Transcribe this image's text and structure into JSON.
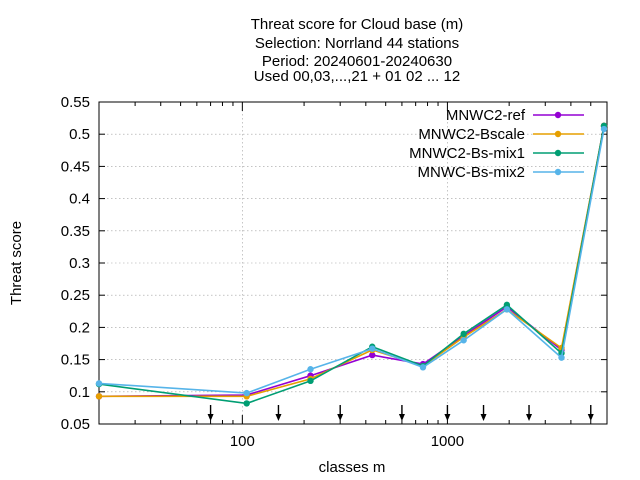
{
  "chart_data": {
    "type": "line",
    "title_lines": [
      "Threat score  for Cloud base (m)",
      "Selection: Norrland     44 stations",
      "Period: 20240601-20240630",
      "Used 00,03,...,21 + 01 02 ... 12"
    ],
    "xlabel": "classes m",
    "ylabel": "Threat score",
    "x_scale": "log",
    "xlim": [
      20,
      6000
    ],
    "ylim": [
      0.05,
      0.55
    ],
    "grid": true,
    "legend_position": "top-right",
    "y_ticks": [
      "0.05",
      "0.1",
      "0.15",
      "0.2",
      "0.25",
      "0.3",
      "0.35",
      "0.4",
      "0.45",
      "0.5",
      "0.55"
    ],
    "x_ticks": [
      {
        "value": 100,
        "label": "100"
      },
      {
        "value": 1000,
        "label": "1000"
      }
    ],
    "class_markers": [
      70,
      150,
      300,
      600,
      1000,
      1500,
      2500,
      5000
    ],
    "series": [
      {
        "name": "MNWC2-ref",
        "color": "#9400d3",
        "x": [
          20,
          105,
          215,
          430,
          760,
          1200,
          1950,
          3600,
          5800
        ],
        "y": [
          0.093,
          0.095,
          0.125,
          0.157,
          0.143,
          0.187,
          0.232,
          0.165,
          0.513
        ]
      },
      {
        "name": "MNWC2-Bscale",
        "color": "#e69f00",
        "x": [
          20,
          105,
          215,
          430,
          760,
          1200,
          1950,
          3600,
          5800
        ],
        "y": [
          0.093,
          0.093,
          0.12,
          0.165,
          0.14,
          0.185,
          0.228,
          0.168,
          0.513
        ]
      },
      {
        "name": "MNWC2-Bs-mix1",
        "color": "#009e73",
        "x": [
          20,
          105,
          215,
          430,
          760,
          1200,
          1950,
          3600,
          5800
        ],
        "y": [
          0.112,
          0.082,
          0.117,
          0.17,
          0.14,
          0.19,
          0.235,
          0.16,
          0.513
        ]
      },
      {
        "name": "MNWC-Bs-mix2",
        "color": "#56b4e9",
        "x": [
          20,
          105,
          215,
          430,
          760,
          1200,
          1950,
          3600,
          5800
        ],
        "y": [
          0.113,
          0.098,
          0.135,
          0.167,
          0.138,
          0.18,
          0.228,
          0.153,
          0.508
        ]
      }
    ]
  }
}
